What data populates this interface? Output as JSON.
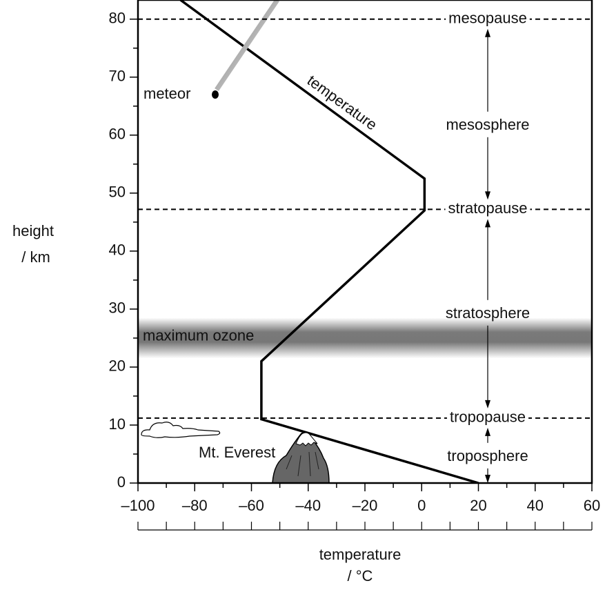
{
  "chart_data": {
    "type": "line",
    "ylabel": [
      "height",
      "/ km"
    ],
    "xlabel": [
      "temperature",
      "/ °C"
    ],
    "x": [
      20,
      -56.5,
      -56.5,
      1,
      1,
      -85
    ],
    "series": [
      {
        "name": "temperature",
        "color": "#000000",
        "values": [
          0,
          11,
          21,
          47,
          52.5,
          83.3
        ]
      }
    ],
    "xlim": [
      -100,
      60
    ],
    "ylim": [
      0,
      83.3
    ],
    "xticks": [
      {
        "value": -100,
        "label": "–100"
      },
      {
        "value": -80,
        "label": "–80"
      },
      {
        "value": -60,
        "label": "–60"
      },
      {
        "value": -40,
        "label": "–40"
      },
      {
        "value": -20,
        "label": "–20"
      },
      0,
      20,
      40,
      60
    ],
    "xticks_minor": [
      -90,
      -70,
      -50,
      -30,
      -10,
      10,
      30,
      50
    ],
    "yticks": [
      0,
      10,
      20,
      30,
      40,
      50,
      60,
      70,
      80
    ],
    "yticks_minor": [
      5,
      15,
      25,
      35,
      45,
      55,
      65,
      75
    ],
    "reference_lines": [
      {
        "label": "mesopause",
        "value": 80
      },
      {
        "label": "stratopause",
        "value": 47.2
      },
      {
        "label": "tropopause",
        "value": 11.2
      }
    ],
    "layers": [
      "mesosphere",
      "stratosphere",
      "troposphere"
    ],
    "ozone_band": {
      "label": "maximum ozone",
      "range": [
        21.5,
        28.5
      ]
    },
    "annotations": [
      "meteor",
      "Mt. Everest"
    ]
  }
}
